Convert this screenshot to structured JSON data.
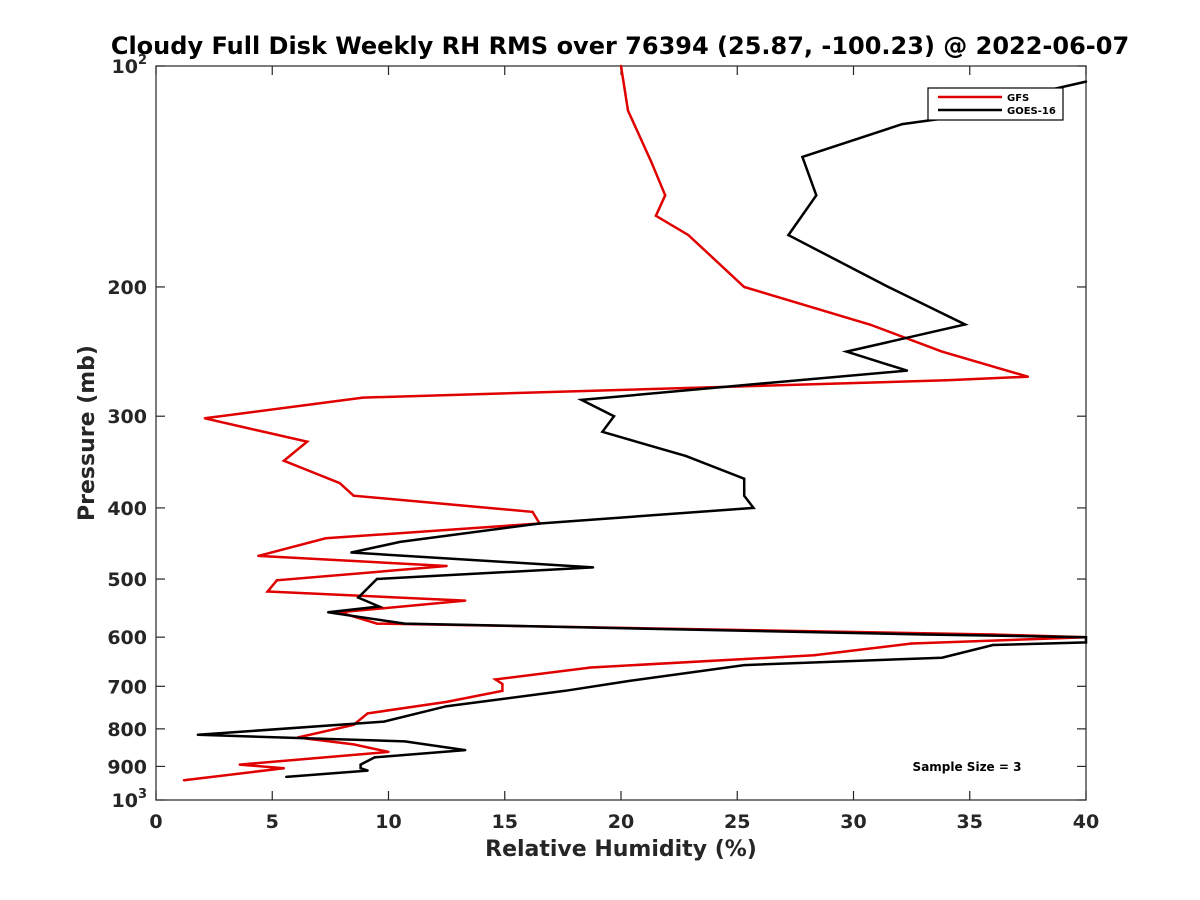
{
  "chart_data": {
    "type": "line",
    "title": "Cloudy Full Disk Weekly RH RMS over 76394 (25.87, -100.23) @ 2022-06-07",
    "xlabel": "Relative Humidity (%)",
    "ylabel": "Pressure (mb)",
    "xlim": [
      0,
      40
    ],
    "ylim": [
      100,
      1000
    ],
    "y_scale": "log",
    "y_reversed": true,
    "grid": false,
    "legend_position": "top-right",
    "x_ticks": [
      "0",
      "5",
      "10",
      "15",
      "20",
      "25",
      "30",
      "35",
      "40"
    ],
    "y_ticks": [
      {
        "value": 100,
        "base": "10",
        "exp": "2"
      },
      {
        "value": 200,
        "label": "200"
      },
      {
        "value": 300,
        "label": "300"
      },
      {
        "value": 400,
        "label": "400"
      },
      {
        "value": 500,
        "label": "500"
      },
      {
        "value": 600,
        "label": "600"
      },
      {
        "value": 700,
        "label": "700"
      },
      {
        "value": 800,
        "label": "800"
      },
      {
        "value": 900,
        "label": "900"
      },
      {
        "value": 1000,
        "base": "10",
        "exp": "3"
      }
    ],
    "annotation": "Sample Size = 3",
    "series": [
      {
        "name": "GFS",
        "color": "#e00000",
        "points": [
          [
            20.0,
            100
          ],
          [
            20.3,
            115
          ],
          [
            21.3,
            135
          ],
          [
            21.9,
            150
          ],
          [
            21.5,
            160
          ],
          [
            22.9,
            170
          ],
          [
            25.3,
            200
          ],
          [
            30.7,
            225
          ],
          [
            33.8,
            245
          ],
          [
            37.5,
            265
          ],
          [
            34.0,
            268
          ],
          [
            8.9,
            283
          ],
          [
            2.1,
            302
          ],
          [
            6.5,
            325
          ],
          [
            5.5,
            345
          ],
          [
            7.9,
            370
          ],
          [
            8.5,
            385
          ],
          [
            16.2,
            405
          ],
          [
            16.5,
            420
          ],
          [
            7.3,
            440
          ],
          [
            4.4,
            465
          ],
          [
            12.5,
            480
          ],
          [
            5.2,
            502
          ],
          [
            4.8,
            520
          ],
          [
            13.3,
            535
          ],
          [
            7.9,
            555
          ],
          [
            9.5,
            575
          ],
          [
            36.0,
            595
          ],
          [
            40.0,
            600
          ],
          [
            32.5,
            612
          ],
          [
            28.3,
            635
          ],
          [
            18.7,
            660
          ],
          [
            14.6,
            685
          ],
          [
            14.9,
            695
          ],
          [
            14.9,
            710
          ],
          [
            12.5,
            735
          ],
          [
            9.1,
            762
          ],
          [
            8.5,
            790
          ],
          [
            6.1,
            822
          ],
          [
            8.5,
            840
          ],
          [
            10.0,
            860
          ],
          [
            3.6,
            895
          ],
          [
            5.5,
            905
          ],
          [
            1.2,
            940
          ]
        ]
      },
      {
        "name": "GOES-16",
        "color": "#000000",
        "points": [
          [
            40.0,
            105
          ],
          [
            37.2,
            110
          ],
          [
            35.5,
            116
          ],
          [
            32.1,
            120
          ],
          [
            27.8,
            133
          ],
          [
            28.4,
            150
          ],
          [
            27.2,
            170
          ],
          [
            31.5,
            200
          ],
          [
            34.8,
            225
          ],
          [
            29.7,
            245
          ],
          [
            32.3,
            260
          ],
          [
            26.5,
            270
          ],
          [
            18.3,
            285
          ],
          [
            19.7,
            300
          ],
          [
            19.2,
            315
          ],
          [
            22.8,
            340
          ],
          [
            25.3,
            365
          ],
          [
            25.3,
            385
          ],
          [
            25.7,
            400
          ],
          [
            16.5,
            420
          ],
          [
            10.5,
            445
          ],
          [
            8.4,
            460
          ],
          [
            18.8,
            482
          ],
          [
            9.5,
            500
          ],
          [
            8.7,
            530
          ],
          [
            9.6,
            545
          ],
          [
            7.4,
            555
          ],
          [
            10.7,
            575
          ],
          [
            33.0,
            595
          ],
          [
            40.0,
            600
          ],
          [
            40.0,
            610
          ],
          [
            36.0,
            615
          ],
          [
            33.8,
            640
          ],
          [
            25.3,
            655
          ],
          [
            20.4,
            688
          ],
          [
            17.6,
            710
          ],
          [
            12.5,
            745
          ],
          [
            9.8,
            782
          ],
          [
            1.8,
            815
          ],
          [
            10.7,
            832
          ],
          [
            13.3,
            855
          ],
          [
            9.4,
            875
          ],
          [
            8.8,
            895
          ],
          [
            8.8,
            905
          ],
          [
            9.1,
            912
          ],
          [
            5.6,
            930
          ]
        ]
      }
    ]
  }
}
